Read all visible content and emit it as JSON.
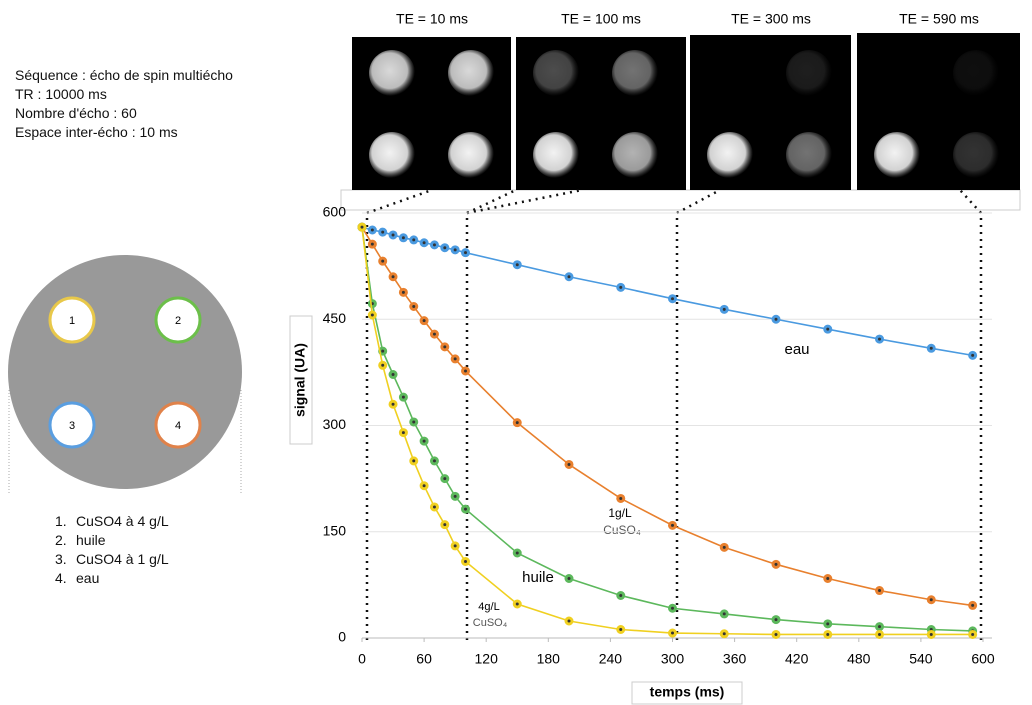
{
  "info": [
    "Séquence : écho de spin multiécho",
    "TR : 10000 ms",
    "Nombre d'écho : 60",
    "Espace inter-écho : 10 ms"
  ],
  "images": [
    "TE = 10 ms",
    "TE = 100 ms",
    "TE = 300 ms",
    "TE = 590 ms"
  ],
  "phantom": {
    "labels": [
      "1",
      "2",
      "3",
      "4"
    ],
    "legend": [
      {
        "num": "1.",
        "text": "CuSO4 à 4 g/L"
      },
      {
        "num": "2.",
        "text": "huile"
      },
      {
        "num": "3.",
        "text": "CuSO4 à 1 g/L"
      },
      {
        "num": "4.",
        "text": "eau"
      }
    ]
  },
  "chart_data": {
    "type": "line",
    "xlabel": "temps (ms)",
    "ylabel": "signal (UA)",
    "x": [
      0,
      10,
      20,
      30,
      40,
      50,
      60,
      70,
      80,
      90,
      100,
      150,
      200,
      250,
      300,
      350,
      400,
      450,
      500,
      550,
      590
    ],
    "series": [
      {
        "name": "eau",
        "color": "#4a9ae0",
        "values": [
          580,
          576,
          573,
          569,
          565,
          562,
          558,
          555,
          551,
          548,
          544,
          527,
          510,
          495,
          479,
          464,
          450,
          436,
          422,
          409,
          399
        ]
      },
      {
        "name": "1g/L CuSO4",
        "color": "#e8802e",
        "values": [
          580,
          556,
          532,
          510,
          488,
          468,
          448,
          429,
          411,
          394,
          377,
          304,
          245,
          197,
          159,
          128,
          104,
          84,
          67,
          54,
          46
        ]
      },
      {
        "name": "huile",
        "color": "#5cb85c",
        "values": [
          580,
          472,
          405,
          372,
          340,
          305,
          278,
          250,
          225,
          200,
          182,
          120,
          84,
          60,
          42,
          34,
          26,
          20,
          16,
          12,
          10
        ]
      },
      {
        "name": "4g/L CuSO4",
        "color": "#f0d020",
        "values": [
          580,
          456,
          385,
          330,
          290,
          250,
          215,
          185,
          160,
          130,
          108,
          48,
          24,
          12,
          7,
          6,
          5,
          5,
          5,
          5,
          5
        ]
      }
    ],
    "annotations": [
      "eau",
      "1g/L",
      "CuSO₄",
      "huile",
      "4g/L",
      "CuSO₄"
    ],
    "xlim": [
      0,
      600
    ],
    "ylim": [
      0,
      600
    ],
    "xticks": [
      0,
      60,
      120,
      180,
      240,
      300,
      360,
      420,
      480,
      540,
      600
    ],
    "yticks": [
      0,
      150,
      300,
      450,
      600
    ],
    "grid": true
  }
}
